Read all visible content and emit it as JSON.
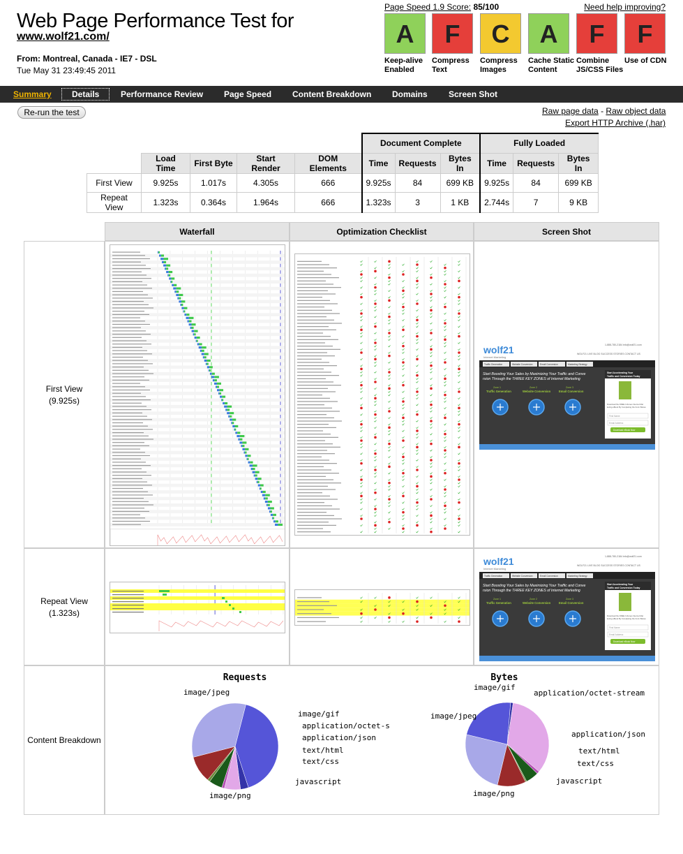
{
  "header": {
    "title": "Web Page Performance Test for",
    "url": "www.wolf21.com/",
    "from": "From: Montreal, Canada - IE7 - DSL",
    "date": "Tue May 31 23:49:45 2011"
  },
  "pagespeed": {
    "label": "Page Speed 1.9 Score:",
    "score": "85/100",
    "help": "Need help improving?"
  },
  "grades": [
    {
      "letter": "A",
      "label": "Keep-alive Enabled",
      "color": "#8fd15a"
    },
    {
      "letter": "F",
      "label": "Compress Text",
      "color": "#e53f3a"
    },
    {
      "letter": "C",
      "label": "Compress Images",
      "color": "#f3c930"
    },
    {
      "letter": "A",
      "label": "Cache Static Content",
      "color": "#8fd15a"
    },
    {
      "letter": "F",
      "label": "Combine JS/CSS Files",
      "color": "#e53f3a"
    },
    {
      "letter": "F",
      "label": "Use of CDN",
      "color": "#e53f3a"
    }
  ],
  "nav": {
    "summary": "Summary",
    "details": "Details",
    "performance_review": "Performance Review",
    "page_speed": "Page Speed",
    "content_breakdown": "Content Breakdown",
    "domains": "Domains",
    "screen_shot": "Screen Shot"
  },
  "actions": {
    "rerun": "Re-run the test",
    "raw_page": "Raw page data",
    "separator": " - ",
    "raw_object": "Raw object data",
    "export_har": "Export HTTP Archive (.har)"
  },
  "results": {
    "groups": {
      "document_complete": "Document Complete",
      "fully_loaded": "Fully Loaded"
    },
    "columns": [
      "Load Time",
      "First Byte",
      "Start Render",
      "DOM Elements",
      "Time",
      "Requests",
      "Bytes In",
      "Time",
      "Requests",
      "Bytes In"
    ],
    "rows": [
      {
        "label": "First View",
        "values": [
          "9.925s",
          "1.017s",
          "4.305s",
          "666",
          "9.925s",
          "84",
          "699 KB",
          "9.925s",
          "84",
          "699 KB"
        ]
      },
      {
        "label": "Repeat View",
        "values": [
          "1.323s",
          "0.364s",
          "1.964s",
          "666",
          "1.323s",
          "3",
          "1 KB",
          "2.744s",
          "7",
          "9 KB"
        ]
      }
    ]
  },
  "grid": {
    "headers": {
      "waterfall": "Waterfall",
      "checklist": "Optimization Checklist",
      "screenshot": "Screen Shot"
    },
    "first_view": {
      "label": "First View",
      "time": "(9.925s)"
    },
    "repeat_view": {
      "label": "Repeat View",
      "time": "(1.323s)"
    },
    "content_breakdown": "Content Breakdown"
  },
  "screenshot": {
    "logo": "wolf21",
    "tagline": "Internet Marketing",
    "phone": "1-888-780-2184",
    "email": "info@wolf21.com",
    "topnav": [
      "WOLF21 LIVE",
      "BLOG",
      "SUCCESS STORIES",
      "CONTACT US"
    ],
    "tabs": [
      "Traffic Generation",
      "Website Conversion",
      "Email Conversion",
      "Marketing Strategy"
    ],
    "headline": "Start Boosting Your Sales by Maximizing Your Traffic and Conversion Through the THREE KEY ZONES of Internet Marketing",
    "zones": [
      {
        "zone": "Zone 1",
        "name": "Traffic Generation"
      },
      {
        "zone": "Zone 2",
        "name": "Website Conversion"
      },
      {
        "zone": "Zone 3",
        "name": "Email Conversion"
      }
    ],
    "side_title": "Start Accelerating Your Traffic and Conversion Today",
    "side_text": "Download the FREE 3-Zones Internet Marketing eBook By Completing the Form Below.",
    "first_name": "First Name",
    "email_placeholder": "Email Address",
    "cta": "Download eBook Now"
  },
  "chart_data": [
    {
      "type": "pie",
      "title": "Requests",
      "slices": [
        {
          "label": "image/jpeg",
          "value": 41,
          "color": "#5555d8"
        },
        {
          "label": "image/gif",
          "value": 3,
          "color": "#3333a8"
        },
        {
          "label": "application/octet-s",
          "value": 6,
          "color": "#e2a8e8"
        },
        {
          "label": "application/json",
          "value": 1,
          "color": "#b44fb4"
        },
        {
          "label": "text/html",
          "value": 5,
          "color": "#1a5a1a"
        },
        {
          "label": "text/css",
          "value": 1,
          "color": "#6b8b3a"
        },
        {
          "label": "javascript",
          "value": 10,
          "color": "#9a2a2a"
        },
        {
          "label": "image/png",
          "value": 33,
          "color": "#a8a8e8"
        }
      ]
    },
    {
      "type": "pie",
      "title": "Bytes",
      "slices": [
        {
          "label": "image/gif",
          "value": 1,
          "color": "#3333a8"
        },
        {
          "label": "application/octet-stream",
          "value": 34,
          "color": "#e2a8e8"
        },
        {
          "label": "application/json",
          "value": 1,
          "color": "#b44fb4"
        },
        {
          "label": "text/html",
          "value": 5,
          "color": "#1a5a1a"
        },
        {
          "label": "text/css",
          "value": 0.5,
          "color": "#6b8b3a"
        },
        {
          "label": "javascript",
          "value": 11,
          "color": "#9a2a2a"
        },
        {
          "label": "image/png",
          "value": 25,
          "color": "#a8a8e8"
        },
        {
          "label": "image/jpeg",
          "value": 22.5,
          "color": "#5555d8"
        }
      ]
    }
  ]
}
